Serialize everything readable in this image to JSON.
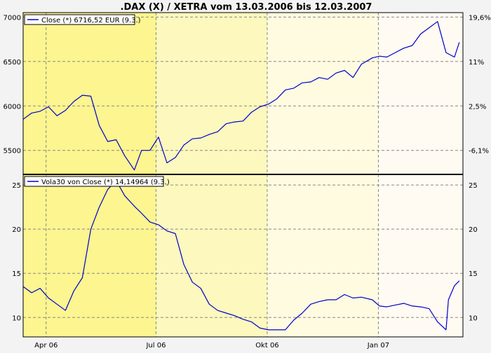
{
  "title": ".DAX (X) / XETRA vom 13.03.2006 bis 12.03.2007",
  "colors": {
    "background": "#f3f3f3",
    "series": "#0000cc",
    "grid": "#888888",
    "border": "#000000",
    "band_q1": "#fcf590",
    "band_q2": "#fdf8bd",
    "band_q3": "#fefbe0",
    "band_q4": "#fffaf2"
  },
  "x_tick_labels": [
    "Apr 06",
    "Jul 06",
    "Okt 06",
    "Jan 07"
  ],
  "chart_data": [
    {
      "type": "line",
      "legend": "Close (*) 6716,52 EUR (9.3.)",
      "legend_position": "top-left",
      "xlim": [
        "2006-03-13",
        "2007-03-12"
      ],
      "ylim": [
        5230,
        7050
      ],
      "y_ticks_left": [
        5500,
        6000,
        6500,
        7000
      ],
      "y_ticks_right": [
        "-6,1%",
        "2,5%",
        "11%",
        "19,6%"
      ],
      "y_ticks_right_values": [
        5500,
        6000,
        6500,
        7000
      ],
      "grid": true,
      "series": [
        {
          "legend": "Close (*) 6716,52 EUR (9.3.)",
          "x": [
            "2006-03-13",
            "2006-03-20",
            "2006-03-27",
            "2006-04-03",
            "2006-04-10",
            "2006-04-17",
            "2006-04-24",
            "2006-05-01",
            "2006-05-08",
            "2006-05-15",
            "2006-05-22",
            "2006-05-29",
            "2006-06-05",
            "2006-06-13",
            "2006-06-19",
            "2006-06-26",
            "2006-07-03",
            "2006-07-10",
            "2006-07-17",
            "2006-07-24",
            "2006-07-31",
            "2006-08-07",
            "2006-08-14",
            "2006-08-21",
            "2006-08-28",
            "2006-09-04",
            "2006-09-11",
            "2006-09-18",
            "2006-09-25",
            "2006-10-02",
            "2006-10-09",
            "2006-10-16",
            "2006-10-23",
            "2006-10-30",
            "2006-11-06",
            "2006-11-13",
            "2006-11-20",
            "2006-11-27",
            "2006-12-04",
            "2006-12-11",
            "2006-12-18",
            "2006-12-27",
            "2007-01-02",
            "2007-01-08",
            "2007-01-15",
            "2007-01-22",
            "2007-01-29",
            "2007-02-05",
            "2007-02-12",
            "2007-02-19",
            "2007-02-26",
            "2007-03-05",
            "2007-03-09"
          ],
          "y": [
            5850,
            5920,
            5940,
            5990,
            5890,
            5950,
            6050,
            6120,
            6110,
            5780,
            5600,
            5620,
            5440,
            5280,
            5500,
            5500,
            5650,
            5360,
            5420,
            5560,
            5630,
            5640,
            5680,
            5710,
            5800,
            5820,
            5830,
            5930,
            5990,
            6020,
            6080,
            6180,
            6200,
            6260,
            6270,
            6320,
            6300,
            6370,
            6400,
            6320,
            6470,
            6540,
            6560,
            6550,
            6600,
            6650,
            6680,
            6810,
            6880,
            6950,
            6600,
            6550,
            6716
          ]
        }
      ]
    },
    {
      "type": "line",
      "legend": "Vola30 von Close (*) 14,14964 (9.3.)",
      "legend_position": "top-left",
      "xlim": [
        "2006-03-13",
        "2007-03-12"
      ],
      "ylim": [
        7.8,
        26.2
      ],
      "y_ticks_left": [
        10,
        15,
        20,
        25
      ],
      "y_ticks_right": [
        10,
        15,
        20,
        25
      ],
      "grid": true,
      "series": [
        {
          "legend": "Vola30 von Close (*) 14,14964 (9.3.)",
          "x": [
            "2006-03-13",
            "2006-03-20",
            "2006-03-27",
            "2006-04-03",
            "2006-04-10",
            "2006-04-17",
            "2006-04-24",
            "2006-05-01",
            "2006-05-08",
            "2006-05-15",
            "2006-05-22",
            "2006-05-29",
            "2006-06-05",
            "2006-06-13",
            "2006-06-19",
            "2006-06-26",
            "2006-07-03",
            "2006-07-10",
            "2006-07-17",
            "2006-07-24",
            "2006-07-31",
            "2006-08-07",
            "2006-08-14",
            "2006-08-21",
            "2006-08-28",
            "2006-09-04",
            "2006-09-11",
            "2006-09-18",
            "2006-09-25",
            "2006-10-02",
            "2006-10-09",
            "2006-10-16",
            "2006-10-23",
            "2006-10-30",
            "2006-11-06",
            "2006-11-13",
            "2006-11-20",
            "2006-11-27",
            "2006-12-04",
            "2006-12-11",
            "2006-12-18",
            "2006-12-27",
            "2007-01-02",
            "2007-01-08",
            "2007-01-15",
            "2007-01-22",
            "2007-01-29",
            "2007-02-05",
            "2007-02-12",
            "2007-02-19",
            "2007-02-26",
            "2007-02-28",
            "2007-03-05",
            "2007-03-09"
          ],
          "y": [
            13.5,
            12.8,
            13.3,
            12.2,
            11.5,
            10.8,
            13.0,
            14.5,
            20.0,
            22.5,
            24.5,
            25.5,
            23.8,
            22.6,
            21.8,
            20.8,
            20.5,
            19.8,
            19.5,
            16.0,
            14.0,
            13.3,
            11.5,
            10.8,
            10.5,
            10.2,
            9.8,
            9.5,
            8.8,
            8.6,
            8.6,
            8.6,
            9.7,
            10.5,
            11.5,
            11.8,
            12.0,
            12.0,
            12.6,
            12.2,
            12.3,
            12.0,
            11.3,
            11.2,
            11.4,
            11.6,
            11.3,
            11.2,
            11.0,
            9.5,
            8.6,
            12.0,
            13.6,
            14.15
          ]
        }
      ]
    }
  ]
}
